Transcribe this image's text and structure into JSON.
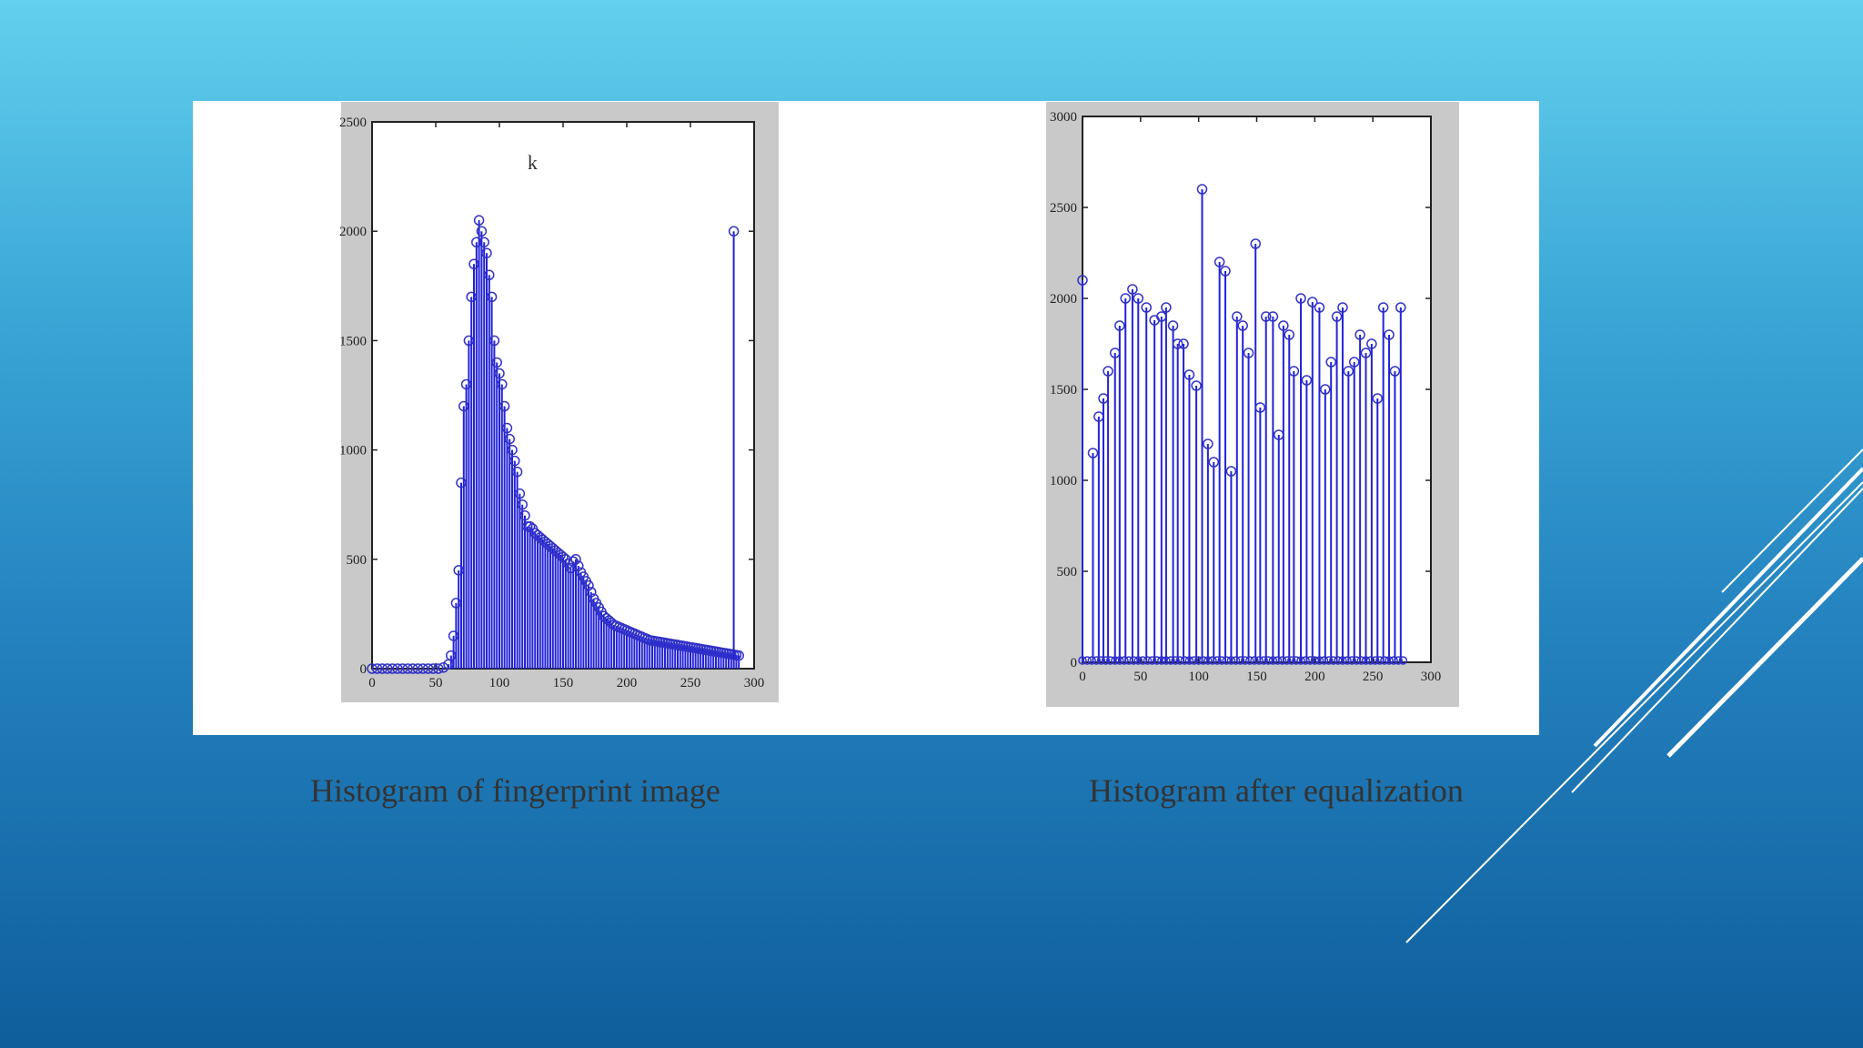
{
  "slide": {
    "captions": [
      "Histogram of fingerprint image",
      "Histogram after equalization"
    ],
    "colors": {
      "bar": "#2323d8",
      "marker": "#3232c8",
      "decor": "#ffffff",
      "caption": "#333333"
    }
  },
  "chart_data": [
    {
      "type": "stem",
      "title": "",
      "xlabel": "",
      "ylabel": "",
      "xlim": [
        0,
        300
      ],
      "ylim": [
        0,
        2500
      ],
      "xticks": [
        "0",
        "50",
        "100",
        "150",
        "200",
        "250",
        "300"
      ],
      "yticks": [
        "0",
        "500",
        "1000",
        "1500",
        "2000",
        "2500"
      ],
      "annotation": "k",
      "x": [
        0,
        4,
        8,
        12,
        16,
        20,
        24,
        28,
        32,
        36,
        40,
        44,
        48,
        52,
        56,
        60,
        62,
        64,
        66,
        68,
        70,
        72,
        74,
        76,
        78,
        80,
        82,
        84,
        86,
        88,
        90,
        92,
        94,
        96,
        98,
        100,
        102,
        104,
        106,
        108,
        110,
        112,
        114,
        116,
        118,
        120,
        122,
        124,
        126,
        128,
        130,
        132,
        134,
        136,
        138,
        140,
        142,
        144,
        146,
        148,
        150,
        152,
        154,
        156,
        158,
        160,
        162,
        164,
        166,
        168,
        170,
        172,
        174,
        176,
        178,
        180,
        182,
        184,
        186,
        188,
        190,
        192,
        194,
        196,
        198,
        200,
        202,
        204,
        206,
        208,
        210,
        212,
        214,
        216,
        218,
        220,
        222,
        224,
        226,
        228,
        230,
        232,
        234,
        236,
        238,
        240,
        242,
        244,
        246,
        248,
        250,
        252,
        254,
        256,
        258,
        260,
        262,
        264,
        266,
        268,
        270,
        272,
        274,
        276,
        278,
        280,
        282,
        284,
        286,
        288
      ],
      "y": [
        0,
        0,
        0,
        0,
        0,
        0,
        0,
        0,
        0,
        0,
        0,
        0,
        0,
        0,
        5,
        20,
        60,
        150,
        300,
        450,
        850,
        1200,
        1300,
        1500,
        1700,
        1850,
        1950,
        2050,
        2000,
        1950,
        1900,
        1800,
        1700,
        1500,
        1400,
        1350,
        1300,
        1200,
        1100,
        1050,
        1000,
        950,
        900,
        800,
        750,
        700,
        650,
        650,
        640,
        620,
        610,
        600,
        590,
        580,
        570,
        560,
        550,
        540,
        530,
        520,
        510,
        500,
        480,
        460,
        490,
        500,
        470,
        440,
        420,
        400,
        380,
        350,
        320,
        300,
        280,
        260,
        240,
        230,
        220,
        210,
        200,
        195,
        190,
        185,
        180,
        175,
        170,
        165,
        160,
        155,
        150,
        145,
        140,
        135,
        130,
        128,
        126,
        124,
        122,
        120,
        118,
        116,
        114,
        112,
        110,
        108,
        106,
        104,
        102,
        100,
        98,
        96,
        94,
        92,
        90,
        88,
        86,
        84,
        82,
        80,
        78,
        76,
        74,
        72,
        70,
        68,
        66,
        64,
        62,
        60
      ],
      "outlier": {
        "x": 284,
        "y": 2000
      }
    },
    {
      "type": "stem",
      "title": "",
      "xlabel": "",
      "ylabel": "",
      "xlim": [
        0,
        300
      ],
      "ylim": [
        0,
        3000
      ],
      "xticks": [
        "0",
        "50",
        "100",
        "150",
        "200",
        "250",
        "300"
      ],
      "yticks": [
        "0",
        "500",
        "1000",
        "1500",
        "2000",
        "2500",
        "3000"
      ],
      "x": [
        0,
        9,
        14,
        18,
        22,
        28,
        32,
        37,
        43,
        48,
        55,
        62,
        68,
        72,
        78,
        82,
        87,
        92,
        98,
        103,
        108,
        113,
        118,
        123,
        128,
        133,
        138,
        143,
        149,
        153,
        158,
        164,
        169,
        173,
        178,
        182,
        188,
        193,
        198,
        204,
        209,
        214,
        219,
        224,
        229,
        234,
        239,
        244,
        249,
        254,
        259,
        264,
        269,
        274
      ],
      "y": [
        2100,
        1150,
        1350,
        1450,
        1600,
        1700,
        1850,
        2000,
        2050,
        2000,
        1950,
        1880,
        1900,
        1950,
        1850,
        1750,
        1750,
        1580,
        1520,
        2600,
        1200,
        1100,
        2200,
        2150,
        1050,
        1900,
        1850,
        1700,
        2300,
        1400,
        1900,
        1900,
        1250,
        1850,
        1800,
        1600,
        2000,
        1550,
        1980,
        1950,
        1500,
        1650,
        1900,
        1950,
        1600,
        1650,
        1800,
        1700,
        1750,
        1450,
        1950,
        1800,
        1600,
        1950
      ]
    }
  ]
}
